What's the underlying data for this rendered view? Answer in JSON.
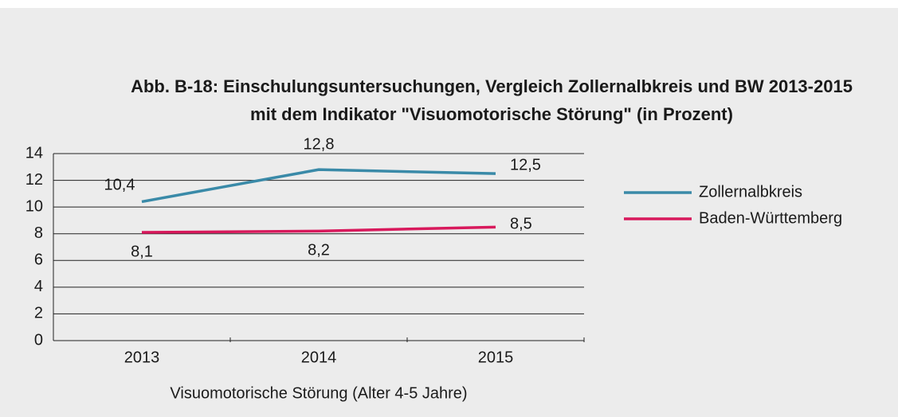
{
  "chart_data": {
    "type": "line",
    "title": [
      "Abb. B-18: Einschulungsuntersuchungen, Vergleich Zollernalbkreis und BW 2013-2015",
      "mit dem Indikator \"Visuomotorische Störung\" (in Prozent)"
    ],
    "x_label": "Visuomotorische Störung (Alter 4-5 Jahre)",
    "categories": [
      "2013",
      "2014",
      "2015"
    ],
    "series": [
      {
        "name": "Zollernalbkreis",
        "color": "#3a8aa8",
        "values": [
          10.4,
          12.8,
          12.5
        ],
        "value_labels": [
          "10,4",
          "12,8",
          "12,5"
        ]
      },
      {
        "name": "Baden-Württemberg",
        "color": "#d8195c",
        "values": [
          8.1,
          8.2,
          8.5
        ],
        "value_labels": [
          "8,1",
          "8,2",
          "8,5"
        ]
      }
    ],
    "ylim": [
      0,
      14
    ],
    "yticks": [
      0,
      2,
      4,
      6,
      8,
      10,
      12,
      14
    ],
    "grid": true,
    "legend": "right"
  }
}
